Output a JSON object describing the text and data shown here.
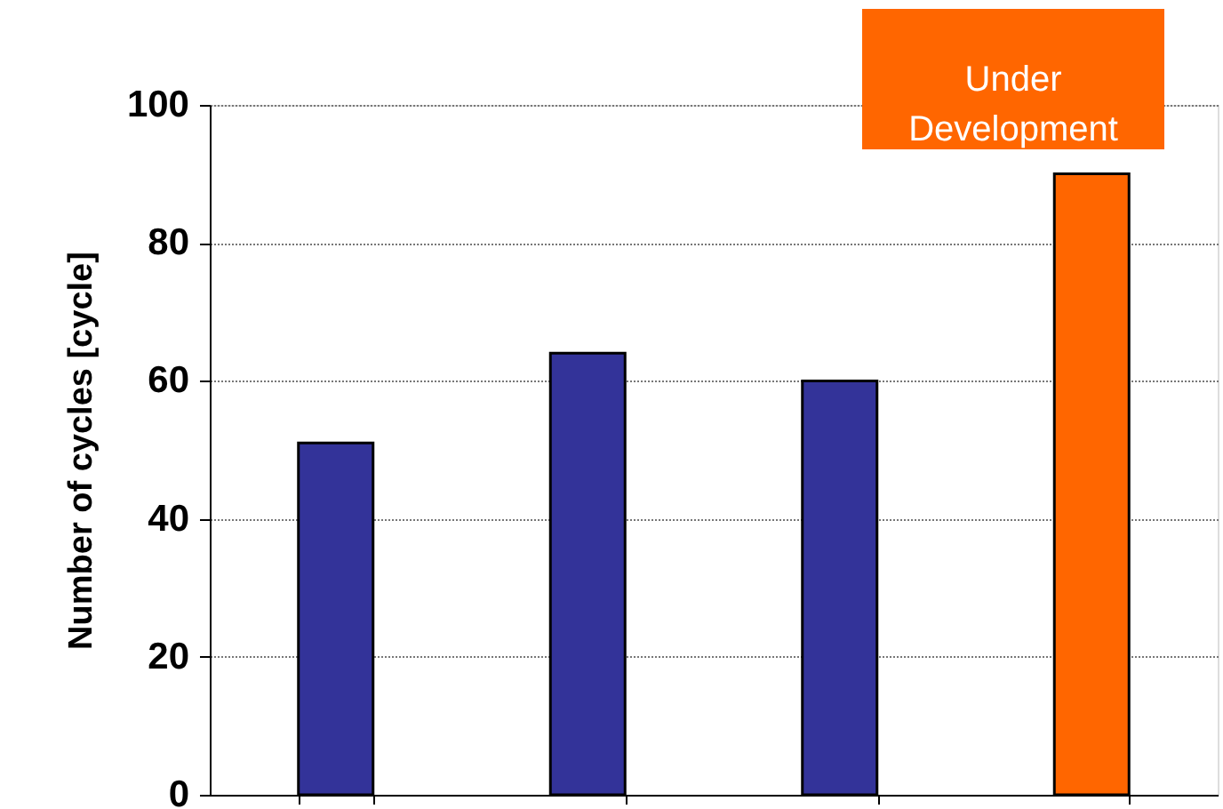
{
  "chart_data": {
    "type": "bar",
    "ylabel": "Number of cycles [cycle]",
    "categories": [
      null,
      null,
      null,
      null
    ],
    "values": [
      51,
      64,
      60,
      90
    ],
    "colors": [
      "#333399",
      "#333399",
      "#333399",
      "#ff6600"
    ],
    "ylim": [
      0,
      100
    ],
    "yticks": [
      0,
      20,
      40,
      60,
      80,
      100
    ],
    "grid": "y",
    "tick_labels": "y",
    "annotations": [
      "Under Development"
    ]
  }
}
